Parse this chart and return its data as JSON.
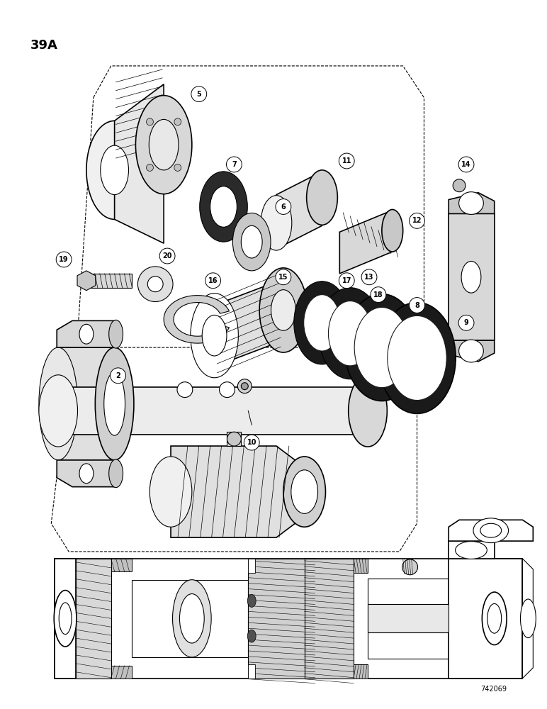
{
  "page_label": "39A",
  "figure_number": "742069",
  "bg_color": "#ffffff",
  "line_color": "#000000",
  "page_width": 7.72,
  "page_height": 10.0,
  "dpi": 100,
  "label_fontsize": 7,
  "title_fontsize": 13
}
